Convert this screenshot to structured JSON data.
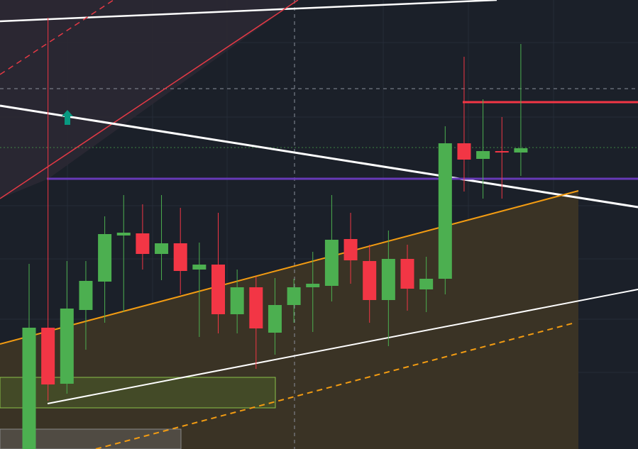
{
  "chart_data": {
    "type": "candlestick",
    "ylim": [
      0,
      633
    ],
    "up_color": "#4caf50",
    "down_color": "#f23645",
    "open": [
      0,
      171,
      92,
      196,
      236,
      301,
      304,
      275,
      290,
      253,
      260,
      190,
      228,
      164,
      203,
      228,
      230,
      296,
      265,
      210,
      268,
      225,
      240,
      431,
      409,
      420,
      418
    ],
    "high": [
      261,
      608,
      265,
      265,
      328,
      358,
      345,
      358,
      340,
      291,
      333,
      253,
      243,
      241,
      240,
      278,
      358,
      333,
      288,
      308,
      288,
      271,
      455,
      553,
      493,
      468,
      571
    ],
    "low": [
      0,
      68,
      78,
      140,
      178,
      193,
      253,
      238,
      218,
      158,
      163,
      163,
      113,
      133,
      178,
      165,
      208,
      233,
      178,
      145,
      195,
      193,
      218,
      363,
      353,
      353,
      385
    ],
    "close": [
      171,
      91,
      198,
      237,
      303,
      305,
      275,
      290,
      251,
      260,
      190,
      228,
      170,
      203,
      228,
      233,
      295,
      266,
      210,
      268,
      226,
      240,
      431,
      408,
      420,
      418,
      424
    ]
  }
}
